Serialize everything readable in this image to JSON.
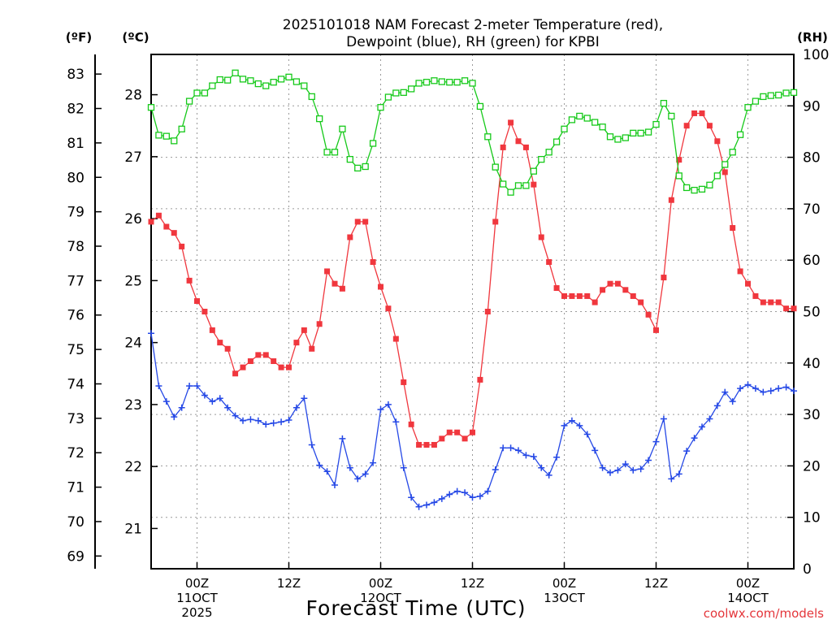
{
  "chart_data": {
    "type": "line",
    "title": [
      "2025101018 NAM Forecast 2-meter Temperature (red),",
      "Dewpoint (blue), RH (green) for KPBI"
    ],
    "xlabel": "Forecast Time (UTC)",
    "credit": "coolwx.com/models",
    "x_range_hours": [
      0,
      84
    ],
    "step_hours": 1,
    "x_ticks": [
      {
        "hour": 6,
        "lines": [
          "00Z",
          "11OCT",
          "2025"
        ]
      },
      {
        "hour": 18,
        "lines": [
          "12Z"
        ]
      },
      {
        "hour": 30,
        "lines": [
          "00Z",
          "12OCT"
        ]
      },
      {
        "hour": 42,
        "lines": [
          "12Z"
        ]
      },
      {
        "hour": 54,
        "lines": [
          "00Z",
          "13OCT"
        ]
      },
      {
        "hour": 66,
        "lines": [
          "12Z"
        ]
      },
      {
        "hour": 78,
        "lines": [
          "00Z",
          "14OCT"
        ]
      }
    ],
    "axes": {
      "fahrenheit": {
        "unit_label": "(ºF)",
        "ticks": [
          69,
          70,
          71,
          72,
          73,
          74,
          75,
          76,
          77,
          78,
          79,
          80,
          81,
          82,
          83
        ]
      },
      "celsius": {
        "unit_label": "(ºC)",
        "range": [
          20.35,
          28.65
        ],
        "ticks": [
          21,
          22,
          23,
          24,
          25,
          26,
          27,
          28
        ]
      },
      "rh": {
        "unit_label": "(RH)",
        "range": [
          0,
          100
        ],
        "ticks": [
          0,
          10,
          20,
          30,
          40,
          50,
          60,
          70,
          80,
          90,
          100
        ]
      }
    },
    "grid": true,
    "series": [
      {
        "name": "Temperature",
        "axis": "celsius",
        "color": "#f0373e",
        "marker": "square",
        "values": [
          25.95,
          26.05,
          25.87,
          25.77,
          25.55,
          25.0,
          24.67,
          24.5,
          24.2,
          24.0,
          23.9,
          23.5,
          23.6,
          23.7,
          23.8,
          23.8,
          23.7,
          23.6,
          23.6,
          24.0,
          24.2,
          23.9,
          24.3,
          25.15,
          24.95,
          24.87,
          25.7,
          25.95,
          25.95,
          25.3,
          24.9,
          24.55,
          24.06,
          23.36,
          22.68,
          22.35,
          22.35,
          22.35,
          22.45,
          22.55,
          22.55,
          22.45,
          22.55,
          23.4,
          24.5,
          25.95,
          27.15,
          27.55,
          27.25,
          27.15,
          26.55,
          25.7,
          25.3,
          24.88,
          24.75,
          24.75,
          24.75,
          24.75,
          24.65,
          24.85,
          24.95,
          24.95,
          24.85,
          24.75,
          24.65,
          24.45,
          24.2,
          25.05,
          26.3,
          26.95,
          27.5,
          27.7,
          27.7,
          27.5,
          27.25,
          26.75,
          25.85,
          25.15,
          24.95,
          24.75,
          24.65,
          24.65,
          24.65,
          24.55,
          24.55
        ]
      },
      {
        "name": "Dewpoint",
        "axis": "celsius",
        "color": "#2548e6",
        "marker": "plus",
        "values": [
          24.15,
          23.3,
          23.05,
          22.8,
          22.95,
          23.3,
          23.3,
          23.15,
          23.05,
          23.1,
          22.95,
          22.82,
          22.74,
          22.76,
          22.74,
          22.68,
          22.7,
          22.72,
          22.75,
          22.95,
          23.1,
          22.35,
          22.02,
          21.92,
          21.7,
          22.45,
          21.98,
          21.8,
          21.88,
          22.06,
          22.92,
          23.0,
          22.72,
          21.98,
          21.5,
          21.35,
          21.38,
          21.42,
          21.48,
          21.55,
          21.6,
          21.58,
          21.5,
          21.52,
          21.6,
          21.95,
          22.3,
          22.3,
          22.26,
          22.18,
          22.16,
          21.98,
          21.86,
          22.15,
          22.66,
          22.74,
          22.66,
          22.52,
          22.26,
          21.98,
          21.9,
          21.94,
          22.04,
          21.94,
          21.96,
          22.1,
          22.4,
          22.77,
          21.8,
          21.88,
          22.25,
          22.46,
          22.64,
          22.77,
          22.98,
          23.2,
          23.05,
          23.26,
          23.32,
          23.26,
          23.2,
          23.22,
          23.26,
          23.28,
          23.22
        ]
      },
      {
        "name": "RH",
        "axis": "rh",
        "color": "#16c91a",
        "marker": "open-square",
        "values": [
          89.7,
          84.3,
          84.1,
          83.2,
          85.5,
          90.9,
          92.5,
          92.5,
          93.9,
          95.1,
          95.0,
          96.4,
          95.2,
          94.9,
          94.3,
          93.9,
          94.6,
          95.2,
          95.6,
          94.7,
          93.9,
          91.8,
          87.5,
          81.0,
          81.0,
          85.5,
          79.6,
          77.9,
          78.2,
          82.7,
          89.7,
          91.7,
          92.5,
          92.6,
          93.3,
          94.4,
          94.6,
          94.9,
          94.7,
          94.6,
          94.6,
          94.9,
          94.4,
          89.9,
          84.0,
          78.1,
          74.8,
          73.2,
          74.5,
          74.5,
          77.3,
          79.6,
          81.0,
          83.0,
          85.5,
          87.3,
          88.0,
          87.6,
          86.8,
          85.9,
          84.0,
          83.5,
          83.8,
          84.7,
          84.7,
          84.9,
          86.4,
          90.5,
          88.0,
          76.4,
          74.1,
          73.6,
          73.8,
          74.6,
          76.4,
          78.6,
          81.0,
          84.4,
          89.7,
          90.9,
          91.8,
          92.0,
          92.1,
          92.5,
          92.6
        ]
      }
    ]
  }
}
